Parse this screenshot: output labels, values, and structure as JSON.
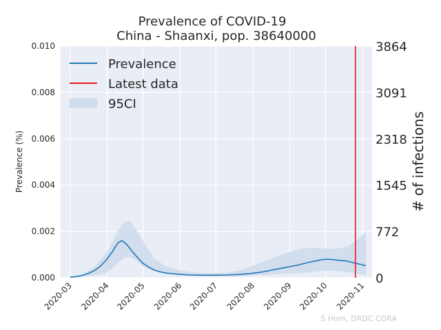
{
  "chart_data": {
    "type": "line",
    "title": "Prevalence of COVID-19",
    "subtitle": "China - Shaanxi, pop. 38640000",
    "ylabel": "Prevalence (%)",
    "ylabel_right": "# of infections",
    "ylim": [
      0,
      0.01
    ],
    "ylim_right": [
      0,
      3864
    ],
    "y_ticks": [
      "0.000",
      "0.002",
      "0.004",
      "0.006",
      "0.008",
      "0.010"
    ],
    "y_ticks_right": [
      "0",
      "772",
      "1545",
      "2318",
      "3091",
      "3864"
    ],
    "x_range": [
      "2020-02-22",
      "2020-11-09"
    ],
    "x_ticks": [
      "2020-03",
      "2020-04",
      "2020-05",
      "2020-06",
      "2020-07",
      "2020-08",
      "2020-09",
      "2020-10",
      "2020-11"
    ],
    "x_tick_dates": [
      "2020-03-01",
      "2020-04-01",
      "2020-05-01",
      "2020-06-01",
      "2020-07-01",
      "2020-08-01",
      "2020-09-01",
      "2020-10-01",
      "2020-11-01"
    ],
    "grid": true,
    "legend_position": "top-left",
    "legend": [
      "Prevalence",
      "Latest data",
      "95CI"
    ],
    "credit": "S Horn, DRDC CORA",
    "colors": {
      "line": "#1f77b4",
      "latest": "#e41a1c",
      "ci": "#cfdcec",
      "background": "#e9edf6",
      "grid": "#ffffff"
    },
    "latest_date": "2020-10-26",
    "series": [
      {
        "name": "Prevalence",
        "x": [
          "2020-03-01",
          "2020-03-06",
          "2020-03-11",
          "2020-03-16",
          "2020-03-21",
          "2020-03-26",
          "2020-03-31",
          "2020-04-05",
          "2020-04-10",
          "2020-04-13",
          "2020-04-15",
          "2020-04-18",
          "2020-04-21",
          "2020-04-26",
          "2020-05-01",
          "2020-05-06",
          "2020-05-11",
          "2020-05-16",
          "2020-05-21",
          "2020-05-31",
          "2020-06-10",
          "2020-06-20",
          "2020-06-30",
          "2020-07-10",
          "2020-07-20",
          "2020-07-30",
          "2020-08-09",
          "2020-08-19",
          "2020-08-29",
          "2020-09-08",
          "2020-09-18",
          "2020-09-28",
          "2020-10-02",
          "2020-10-08",
          "2020-10-12",
          "2020-10-18",
          "2020-10-26",
          "2020-11-04"
        ],
        "y": [
          2e-05,
          5e-05,
          0.0001,
          0.00018,
          0.0003,
          0.00048,
          0.00075,
          0.0011,
          0.0015,
          0.0016,
          0.00155,
          0.0014,
          0.0012,
          0.0009,
          0.00062,
          0.00045,
          0.00032,
          0.00025,
          0.0002,
          0.00015,
          0.00012,
          0.00011,
          0.00011,
          0.00012,
          0.00014,
          0.00018,
          0.00025,
          0.00035,
          0.00045,
          0.00055,
          0.00068,
          0.00078,
          0.0008,
          0.00078,
          0.00075,
          0.00073,
          0.00063,
          0.00052
        ]
      },
      {
        "name": "95CI",
        "x": [
          "2020-03-01",
          "2020-03-11",
          "2020-03-21",
          "2020-03-31",
          "2020-04-05",
          "2020-04-10",
          "2020-04-15",
          "2020-04-20",
          "2020-04-25",
          "2020-05-01",
          "2020-05-10",
          "2020-05-20",
          "2020-05-31",
          "2020-06-10",
          "2020-06-20",
          "2020-06-30",
          "2020-07-10",
          "2020-07-20",
          "2020-07-31",
          "2020-08-10",
          "2020-08-20",
          "2020-08-31",
          "2020-09-10",
          "2020-09-20",
          "2020-09-30",
          "2020-10-10",
          "2020-10-20",
          "2020-10-30",
          "2020-11-04"
        ],
        "upper": [
          4e-05,
          0.00015,
          0.00045,
          0.00105,
          0.0015,
          0.002,
          0.0024,
          0.00245,
          0.0021,
          0.0016,
          0.00085,
          0.0005,
          0.00033,
          0.00024,
          0.0002,
          0.0002,
          0.00022,
          0.0003,
          0.0005,
          0.0007,
          0.0009,
          0.0011,
          0.00125,
          0.0013,
          0.00127,
          0.00125,
          0.00135,
          0.00175,
          0.002
        ],
        "lower": [
          1e-05,
          4e-05,
          0.0001,
          0.0002,
          0.0004,
          0.00065,
          0.00085,
          0.0009,
          0.00075,
          0.0005,
          0.0003,
          0.00017,
          0.0001,
          8e-05,
          7e-05,
          7e-05,
          7e-05,
          8e-05,
          0.0001,
          0.00012,
          0.00015,
          0.00017,
          0.0002,
          0.00025,
          0.0003,
          0.0003,
          0.00025,
          0.00015,
          0.0001
        ]
      }
    ]
  }
}
